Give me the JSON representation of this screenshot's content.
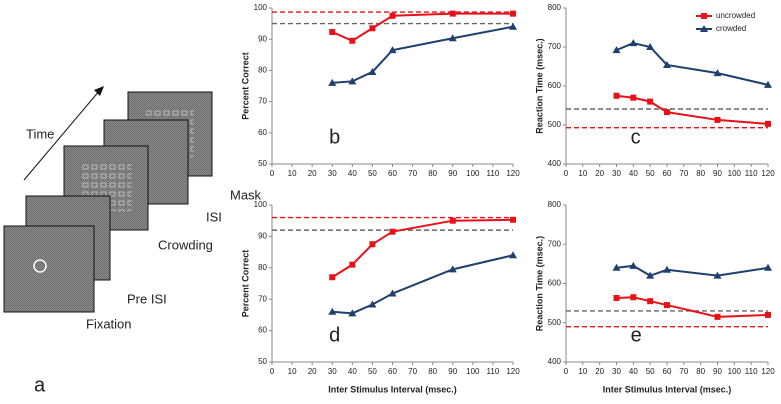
{
  "diagram": {
    "time_label": "Time",
    "frames": [
      "Fixation",
      "Pre ISI",
      "Crowding",
      "ISI",
      "Mask"
    ],
    "panel_label": "a"
  },
  "chart_data": [
    {
      "type": "line",
      "label": "b",
      "y_label": "Percent Correct",
      "x": [
        30,
        40,
        50,
        60,
        90,
        120
      ],
      "xlim": [
        0,
        120
      ],
      "xticks": [
        0,
        10,
        20,
        30,
        40,
        50,
        60,
        70,
        80,
        90,
        100,
        110,
        120
      ],
      "ylim": [
        50,
        100
      ],
      "yticks": [
        50,
        60,
        70,
        80,
        90,
        100
      ],
      "series": [
        {
          "color": "#e8111a",
          "marker": "square",
          "values": [
            92.3,
            89.5,
            93.5,
            97.5,
            98.2,
            98.2
          ]
        },
        {
          "color": "#1f3f6e",
          "marker": "triangle",
          "values": [
            76,
            76.5,
            79.5,
            86.5,
            90.3,
            94
          ]
        }
      ],
      "ref_lines": [
        {
          "value": 98.7,
          "color": "#e8111a"
        },
        {
          "value": 95,
          "color": "#666666"
        }
      ]
    },
    {
      "type": "line",
      "label": "c",
      "y_label": "Reaction Time (msec.)",
      "legend": "upper right",
      "x": [
        30,
        40,
        50,
        60,
        90,
        120
      ],
      "xlim": [
        0,
        120
      ],
      "xticks": [
        0,
        10,
        20,
        30,
        40,
        50,
        60,
        70,
        80,
        90,
        100,
        110,
        120
      ],
      "ylim": [
        400,
        800
      ],
      "yticks": [
        400,
        500,
        600,
        700,
        800
      ],
      "series": [
        {
          "name": "uncrowded",
          "color": "#e8111a",
          "marker": "square",
          "values": [
            575,
            570,
            560,
            533,
            513,
            503
          ]
        },
        {
          "name": "crowded",
          "color": "#1f3f6e",
          "marker": "triangle",
          "values": [
            692,
            710,
            700,
            654,
            633,
            603
          ]
        }
      ],
      "ref_lines": [
        {
          "value": 493,
          "color": "#e8111a"
        },
        {
          "value": 541,
          "color": "#666666"
        }
      ]
    },
    {
      "type": "line",
      "label": "d",
      "y_label": "Percent Correct",
      "x_label": "Inter Stimulus Interval (msec.)",
      "x": [
        30,
        40,
        50,
        60,
        90,
        120
      ],
      "xlim": [
        0,
        120
      ],
      "xticks": [
        0,
        10,
        20,
        30,
        40,
        50,
        60,
        70,
        80,
        90,
        100,
        110,
        120
      ],
      "ylim": [
        50,
        100
      ],
      "yticks": [
        50,
        60,
        70,
        80,
        90,
        100
      ],
      "series": [
        {
          "color": "#e8111a",
          "marker": "square",
          "values": [
            77,
            81,
            87.5,
            91.5,
            95,
            95.3
          ]
        },
        {
          "color": "#1f3f6e",
          "marker": "triangle",
          "values": [
            66,
            65.5,
            68.3,
            71.8,
            79.5,
            84
          ]
        }
      ],
      "ref_lines": [
        {
          "value": 96,
          "color": "#e8111a"
        },
        {
          "value": 92,
          "color": "#666666"
        }
      ]
    },
    {
      "type": "line",
      "label": "e",
      "y_label": "Reaction Time (msec.)",
      "x_label": "Inter Stimulus Interval (msec.)",
      "x": [
        30,
        40,
        50,
        60,
        90,
        120
      ],
      "xlim": [
        0,
        120
      ],
      "xticks": [
        0,
        10,
        20,
        30,
        40,
        50,
        60,
        70,
        80,
        90,
        100,
        110,
        120
      ],
      "ylim": [
        400,
        800
      ],
      "yticks": [
        400,
        500,
        600,
        700,
        800
      ],
      "series": [
        {
          "color": "#e8111a",
          "marker": "square",
          "values": [
            563,
            565,
            555,
            545,
            515,
            520
          ]
        },
        {
          "color": "#1f3f6e",
          "marker": "triangle",
          "values": [
            640,
            645,
            620,
            635,
            620,
            640
          ]
        }
      ],
      "ref_lines": [
        {
          "value": 490,
          "color": "#e8111a"
        },
        {
          "value": 530,
          "color": "#666666"
        }
      ]
    }
  ]
}
